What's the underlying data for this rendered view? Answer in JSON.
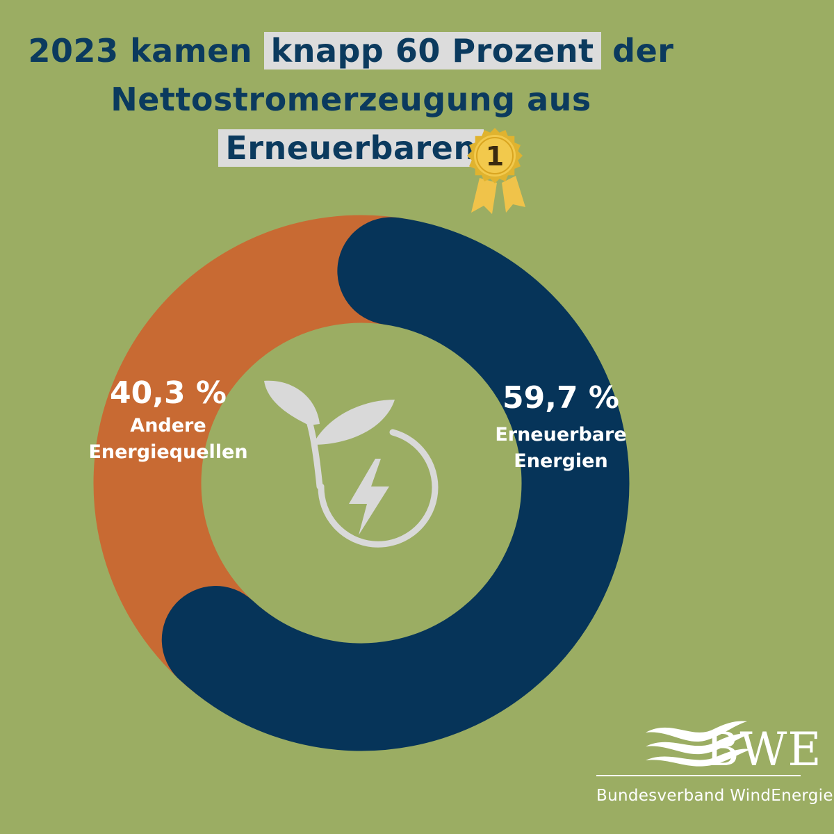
{
  "title": {
    "line1_pre": "2023 kamen",
    "line1_hl": "knapp 60 Prozent",
    "line1_post": "der",
    "line2": "Nettostromerzeugung aus",
    "line3_hl": "Erneuerbaren"
  },
  "medal": {
    "number": "1",
    "icon": "gold-medal-icon"
  },
  "chart_data": {
    "type": "pie",
    "donut": true,
    "slices": [
      {
        "label": "Erneuerbare Energien",
        "value": 59.7,
        "value_label": "59,7 %",
        "label_lines": [
          "Erneuerbare",
          "Energien"
        ],
        "color": "#063459"
      },
      {
        "label": "Andere Energiequellen",
        "value": 40.3,
        "value_label": "40,3 %",
        "label_lines": [
          "Andere",
          "Energiequellen"
        ],
        "color": "#c86a33"
      }
    ],
    "center_icon": "leaf-lightning-icon"
  },
  "logo": {
    "name": "BWE",
    "subtitle": "Bundesverband WindEnergie",
    "icon": "wind-waves-logo-icon"
  },
  "colors": {
    "background": "#9bad63",
    "title": "#0b3a5e",
    "highlight": "#dcdcdc",
    "icon_grey": "#d9d9d9"
  }
}
